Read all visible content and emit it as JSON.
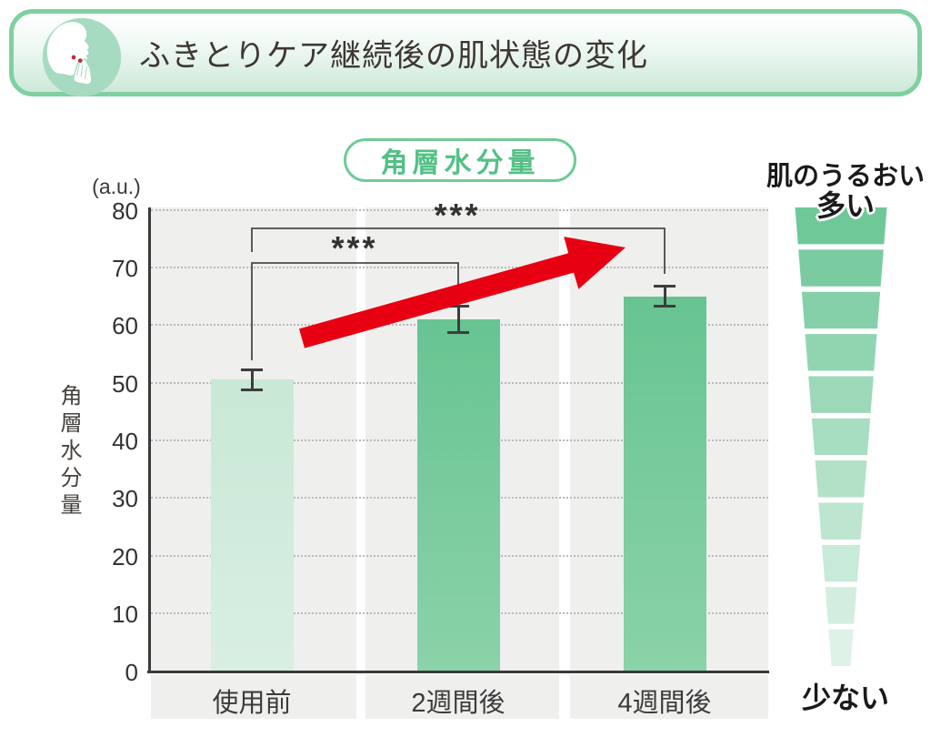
{
  "header": {
    "title": "ふきとりケア継続後の肌状態の変化",
    "icon": "face-profile-skincare-icon"
  },
  "chart": {
    "title": "角層水分量",
    "unit_label": "(a.u.)",
    "y_axis_title": "角層水分量"
  },
  "chart_data": {
    "type": "bar",
    "title": "角層水分量",
    "categories": [
      "使用前",
      "2週間後",
      "4週間後"
    ],
    "values": [
      50.5,
      61,
      65
    ],
    "error_bars": [
      2,
      2.5,
      2
    ],
    "xlabel": "",
    "ylabel": "角層水分量 (a.u.)",
    "ylim": [
      0,
      80
    ],
    "y_ticks": [
      80,
      70,
      60,
      50,
      40,
      30,
      20,
      10,
      0
    ],
    "grid": "horizontal-dotted",
    "legend_position": "none",
    "bar_gradients": [
      [
        "#c9e8d6",
        "#d8efe2"
      ],
      [
        "#67c492",
        "#8bd2a8"
      ],
      [
        "#67c492",
        "#8bd2a8"
      ]
    ],
    "significance": [
      {
        "label": "***",
        "between": [
          "使用前",
          "2週間後"
        ]
      },
      {
        "label": "***",
        "between": [
          "使用前",
          "4週間後"
        ]
      }
    ],
    "trend_annotation": "red-upward-arrow"
  },
  "moisture_scale": {
    "label_top_line1": "肌のうるおい",
    "label_top_line2": "多い",
    "label_bottom": "少ない",
    "segments": 11,
    "color_top": "#6fc898",
    "color_bottom": "#def2e8"
  },
  "colors": {
    "header_border": "#7fd0a1",
    "header_fill_bottom": "#cde9da",
    "icon_circle": "#a7dbc1",
    "accent_green": "#53c185",
    "plot_background": "#efefee",
    "axis": "#3a3a3a",
    "gridline": "#b9b9b9",
    "arrow_red": "#e60012",
    "error_bar": "#3d3d3d"
  }
}
